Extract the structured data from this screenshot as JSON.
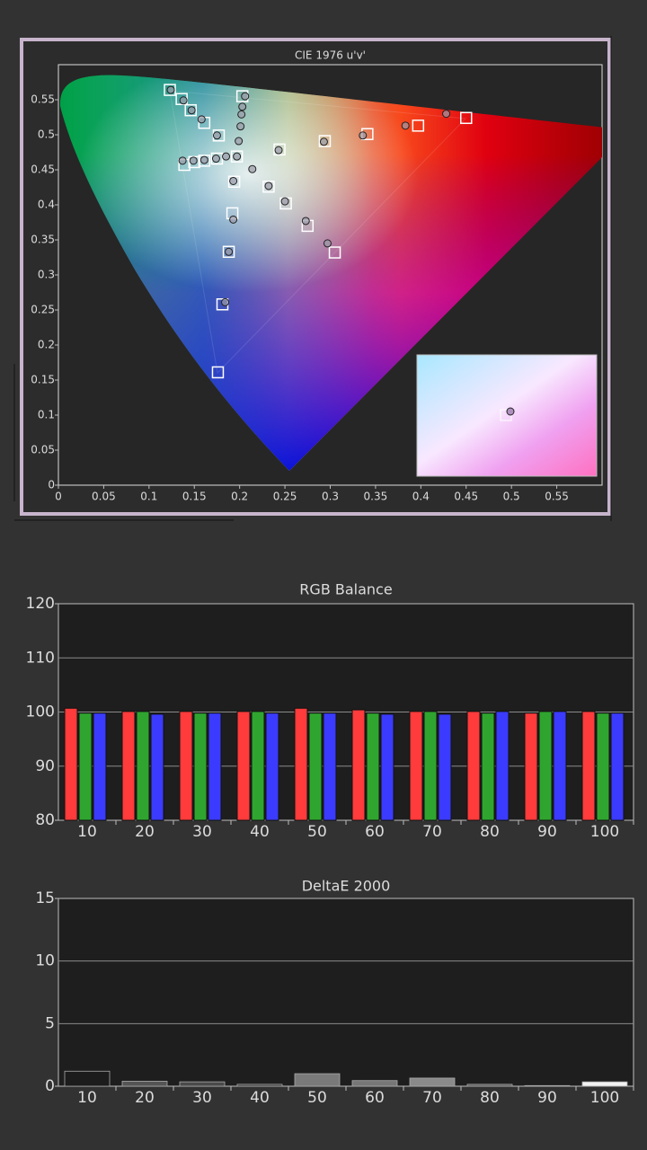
{
  "chart_data": [
    {
      "type": "scatter",
      "title": "CIE 1976 u'v'",
      "xlim": [
        0,
        0.6
      ],
      "ylim": [
        0,
        0.6
      ],
      "xticks": [
        0,
        0.05,
        0.1,
        0.15,
        0.2,
        0.25,
        0.3,
        0.35,
        0.4,
        0.45,
        0.5,
        0.55
      ],
      "yticks": [
        0,
        0.05,
        0.1,
        0.15,
        0.2,
        0.25,
        0.3,
        0.35,
        0.4,
        0.45,
        0.5,
        0.55
      ],
      "series": [
        {
          "marker": "square",
          "color": "#ffffff",
          "x": [
            0.123,
            0.136,
            0.146,
            0.161,
            0.177,
            0.139,
            0.15,
            0.161,
            0.175,
            0.197,
            0.203,
            0.244,
            0.232,
            0.251,
            0.275,
            0.305,
            0.194,
            0.192,
            0.188,
            0.181,
            0.176,
            0.294,
            0.341,
            0.397,
            0.45
          ],
          "values": [
            0.564,
            0.551,
            0.535,
            0.517,
            0.499,
            0.457,
            0.461,
            0.463,
            0.466,
            0.469,
            0.555,
            0.479,
            0.426,
            0.402,
            0.37,
            0.332,
            0.433,
            0.388,
            0.333,
            0.258,
            0.161,
            0.491,
            0.501,
            0.513,
            0.524
          ]
        },
        {
          "marker": "circle",
          "color": "#9a9aa8",
          "x": [
            0.124,
            0.138,
            0.147,
            0.158,
            0.175,
            0.137,
            0.149,
            0.161,
            0.174,
            0.185,
            0.197,
            0.206,
            0.203,
            0.202,
            0.201,
            0.199,
            0.214,
            0.243,
            0.232,
            0.25,
            0.273,
            0.297,
            0.193,
            0.193,
            0.188,
            0.184,
            0.293,
            0.336,
            0.383,
            0.428
          ],
          "values": [
            0.564,
            0.549,
            0.535,
            0.522,
            0.499,
            0.463,
            0.463,
            0.464,
            0.466,
            0.469,
            0.469,
            0.555,
            0.54,
            0.529,
            0.512,
            0.491,
            0.451,
            0.478,
            0.427,
            0.405,
            0.377,
            0.345,
            0.434,
            0.379,
            0.333,
            0.261,
            0.49,
            0.499,
            0.513,
            0.53
          ]
        }
      ]
    },
    {
      "type": "grouped-bar",
      "title": "RGB Balance",
      "categories": [
        "10",
        "20",
        "30",
        "40",
        "50",
        "60",
        "70",
        "80",
        "90",
        "100"
      ],
      "ylim": [
        80,
        120
      ],
      "yticks": [
        80,
        90,
        100,
        110,
        120
      ],
      "grid": true,
      "series": [
        {
          "color": "#ff3b3b",
          "values": [
            100.7,
            100.1,
            100.1,
            100.1,
            100.7,
            100.4,
            100.1,
            100.1,
            99.8,
            100.1
          ]
        },
        {
          "color": "#2fa52f",
          "values": [
            99.8,
            100.1,
            99.8,
            100.1,
            99.8,
            99.8,
            100.1,
            99.8,
            100.1,
            99.8
          ]
        },
        {
          "color": "#3b3bff",
          "values": [
            99.8,
            99.6,
            99.8,
            99.8,
            99.8,
            99.6,
            99.6,
            100.1,
            100.1,
            99.8
          ]
        }
      ]
    },
    {
      "type": "bar",
      "title": "DeltaE 2000",
      "categories": [
        "10",
        "20",
        "30",
        "40",
        "50",
        "60",
        "70",
        "80",
        "90",
        "100"
      ],
      "ylim": [
        0,
        15
      ],
      "yticks": [
        0,
        5,
        10,
        15
      ],
      "grid": true,
      "values": [
        1.2,
        0.4,
        0.35,
        0.15,
        1.0,
        0.45,
        0.65,
        0.15,
        0.05,
        0.35
      ],
      "colors": [
        "#1c1c1c",
        "#555555",
        "#4a4a4a",
        "#3a3a3a",
        "#7a7a7a",
        "#777777",
        "#8a8a8a",
        "#555555",
        "#888888",
        "#f2f2f2"
      ]
    }
  ]
}
